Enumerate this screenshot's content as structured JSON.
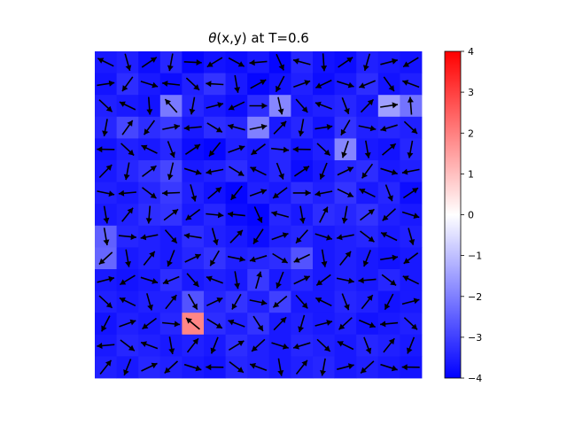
{
  "chart_data": {
    "type": "heatmap",
    "title_symbol": "θ",
    "title_rest": "(x,y) at T=0.6",
    "grid_size": [
      15,
      15
    ],
    "colormap": "bwr",
    "colorbar": {
      "vmin": -4,
      "vmax": 4,
      "ticks": [
        "4",
        "3",
        "2",
        "1",
        "0",
        "−1",
        "−2",
        "−3",
        "−4"
      ]
    },
    "axes_visible": false,
    "values": [
      [
        -3.6,
        -3.5,
        -3.8,
        -3.4,
        -3.9,
        -3.7,
        -3.8,
        -3.6,
        -3.9,
        -3.4,
        -3.7,
        -3.8,
        -3.5,
        -3.6,
        -3.7
      ],
      [
        -3.7,
        -3.3,
        -3.6,
        -3.8,
        -3.5,
        -3.2,
        -3.6,
        -3.9,
        -3.7,
        -3.5,
        -3.8,
        -3.6,
        -3.3,
        -3.7,
        -3.5
      ],
      [
        -3.5,
        -3.6,
        -3.7,
        -2.1,
        -3.4,
        -3.6,
        -3.8,
        -3.3,
        -1.9,
        -3.6,
        -3.5,
        -3.4,
        -3.6,
        -1.5,
        -2.2
      ],
      [
        -3.4,
        -2.9,
        -3.3,
        -3.1,
        -3.6,
        -3.3,
        -3.4,
        -2.0,
        -3.6,
        -3.4,
        -3.7,
        -3.2,
        -3.5,
        -3.4,
        -3.5
      ],
      [
        -3.7,
        -3.5,
        -3.6,
        -3.4,
        -3.8,
        -3.9,
        -3.5,
        -3.6,
        -3.4,
        -3.7,
        -3.5,
        -1.9,
        -3.6,
        -3.7,
        -3.4
      ],
      [
        -3.6,
        -3.4,
        -3.2,
        -2.9,
        -3.6,
        -3.5,
        -3.3,
        -3.6,
        -3.4,
        -3.8,
        -3.6,
        -3.4,
        -3.3,
        -3.6,
        -3.5
      ],
      [
        -3.5,
        -3.6,
        -3.4,
        -3.1,
        -3.5,
        -3.7,
        -3.9,
        -3.5,
        -3.6,
        -3.3,
        -3.5,
        -3.2,
        -3.6,
        -3.4,
        -3.8
      ],
      [
        -3.6,
        -3.5,
        -3.3,
        -3.2,
        -3.6,
        -3.4,
        -3.8,
        -3.9,
        -3.4,
        -3.6,
        -3.3,
        -3.4,
        -3.2,
        -3.5,
        -3.6
      ],
      [
        -2.5,
        -3.4,
        -3.5,
        -3.6,
        -3.3,
        -3.5,
        -3.6,
        -3.8,
        -3.5,
        -3.4,
        -3.6,
        -3.5,
        -3.4,
        -3.6,
        -3.5
      ],
      [
        -2.4,
        -3.6,
        -3.5,
        -3.6,
        -3.4,
        -3.2,
        -3.5,
        -3.4,
        -3.3,
        -2.7,
        -3.6,
        -3.5,
        -3.6,
        -3.7,
        -3.6
      ],
      [
        -3.6,
        -3.7,
        -3.6,
        -3.3,
        -3.6,
        -3.5,
        -3.6,
        -3.1,
        -3.6,
        -3.4,
        -3.6,
        -3.5,
        -3.6,
        -3.4,
        -3.6
      ],
      [
        -3.5,
        -3.6,
        -3.5,
        -3.5,
        -2.7,
        -3.4,
        -3.2,
        -3.5,
        -3.0,
        -3.6,
        -3.6,
        -3.4,
        -3.5,
        -3.7,
        -3.6
      ],
      [
        -3.7,
        -3.5,
        -3.6,
        -3.4,
        1.9,
        -3.3,
        -3.5,
        -3.2,
        -3.6,
        -3.5,
        -3.6,
        -3.5,
        -3.7,
        -3.6,
        -3.5
      ],
      [
        -3.6,
        -3.4,
        -3.5,
        -3.6,
        -3.5,
        -3.6,
        -3.3,
        -3.5,
        -3.6,
        -3.4,
        -3.5,
        -3.6,
        -3.4,
        -3.5,
        -3.6
      ],
      [
        -3.5,
        -3.6,
        -3.4,
        -3.5,
        -3.6,
        -3.7,
        -3.4,
        -3.5,
        -3.6,
        -3.5,
        -3.4,
        -3.6,
        -3.5,
        -3.6,
        -3.7
      ]
    ]
  }
}
